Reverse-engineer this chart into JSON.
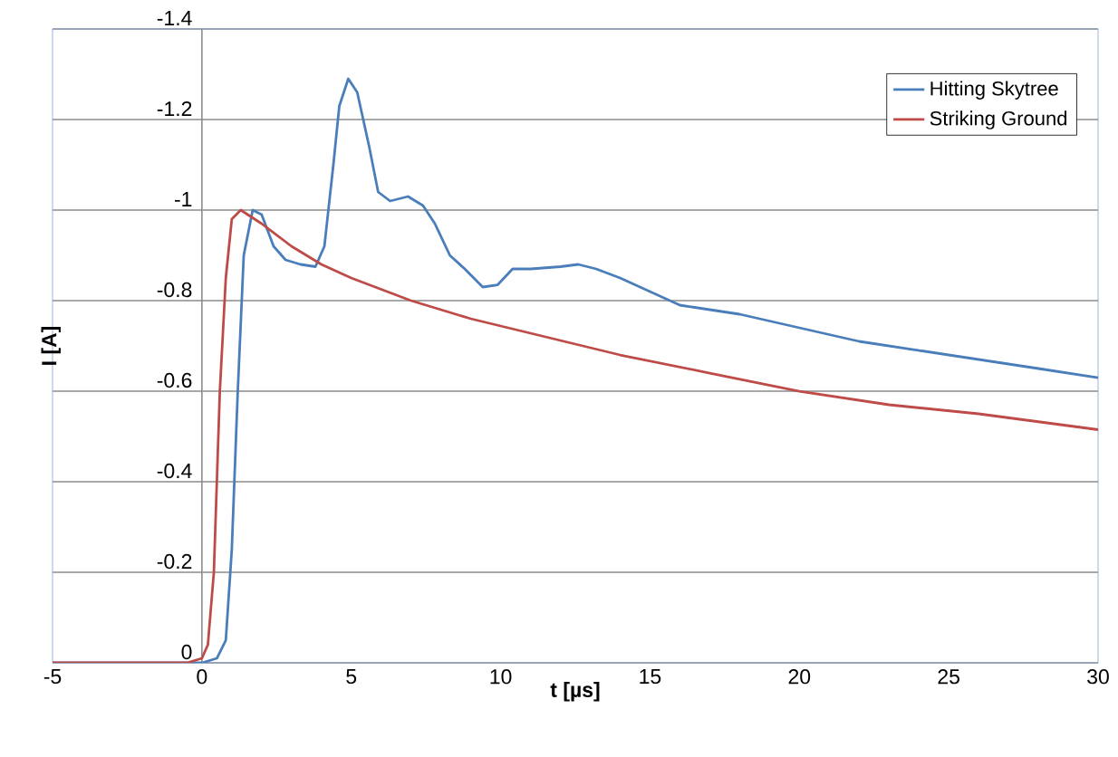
{
  "chart_data": {
    "type": "line",
    "xlabel": "t [µs]",
    "ylabel": "I [A]",
    "xlim": [
      -5,
      30
    ],
    "ylim": [
      0,
      -1.4
    ],
    "xticks": [
      -5,
      0,
      5,
      10,
      15,
      20,
      25,
      30
    ],
    "yticks": [
      0,
      -0.2,
      -0.4,
      -0.6,
      -0.8,
      -1,
      -1.2,
      -1.4
    ],
    "grid": "y",
    "legend": "top right",
    "marker": "none",
    "line_style": "solid",
    "series": [
      {
        "name": "Hitting Skytree",
        "color": "#4a7ebb",
        "x": [
          -5,
          0,
          0.5,
          0.8,
          1.0,
          1.2,
          1.4,
          1.7,
          2.0,
          2.4,
          2.8,
          3.3,
          3.8,
          4.1,
          4.4,
          4.6,
          4.9,
          5.2,
          5.6,
          5.9,
          6.3,
          6.9,
          7.4,
          7.8,
          8.3,
          8.8,
          9.4,
          9.9,
          10.4,
          11,
          12,
          12.6,
          13.2,
          14,
          15,
          16,
          17,
          18,
          20,
          22,
          24,
          26,
          28,
          30
        ],
        "values": [
          0,
          0,
          -0.01,
          -0.05,
          -0.25,
          -0.6,
          -0.9,
          -1.0,
          -0.99,
          -0.92,
          -0.89,
          -0.88,
          -0.875,
          -0.92,
          -1.1,
          -1.23,
          -1.29,
          -1.26,
          -1.14,
          -1.04,
          -1.02,
          -1.03,
          -1.01,
          -0.97,
          -0.9,
          -0.87,
          -0.83,
          -0.835,
          -0.87,
          -0.87,
          -0.875,
          -0.88,
          -0.87,
          -0.85,
          -0.82,
          -0.79,
          -0.78,
          -0.77,
          -0.74,
          -0.71,
          -0.69,
          -0.67,
          -0.65,
          -0.63
        ]
      },
      {
        "name": "Striking Ground",
        "color": "#be4b48",
        "x": [
          -5,
          -0.5,
          0,
          0.2,
          0.4,
          0.6,
          0.8,
          1.0,
          1.3,
          2,
          3,
          4,
          5,
          7,
          9,
          11.5,
          14,
          17,
          20,
          23,
          26,
          30
        ],
        "values": [
          0,
          0,
          -0.01,
          -0.04,
          -0.2,
          -0.6,
          -0.85,
          -0.98,
          -1.0,
          -0.97,
          -0.92,
          -0.88,
          -0.85,
          -0.8,
          -0.76,
          -0.72,
          -0.68,
          -0.64,
          -0.6,
          -0.57,
          -0.55,
          -0.515
        ]
      }
    ]
  }
}
